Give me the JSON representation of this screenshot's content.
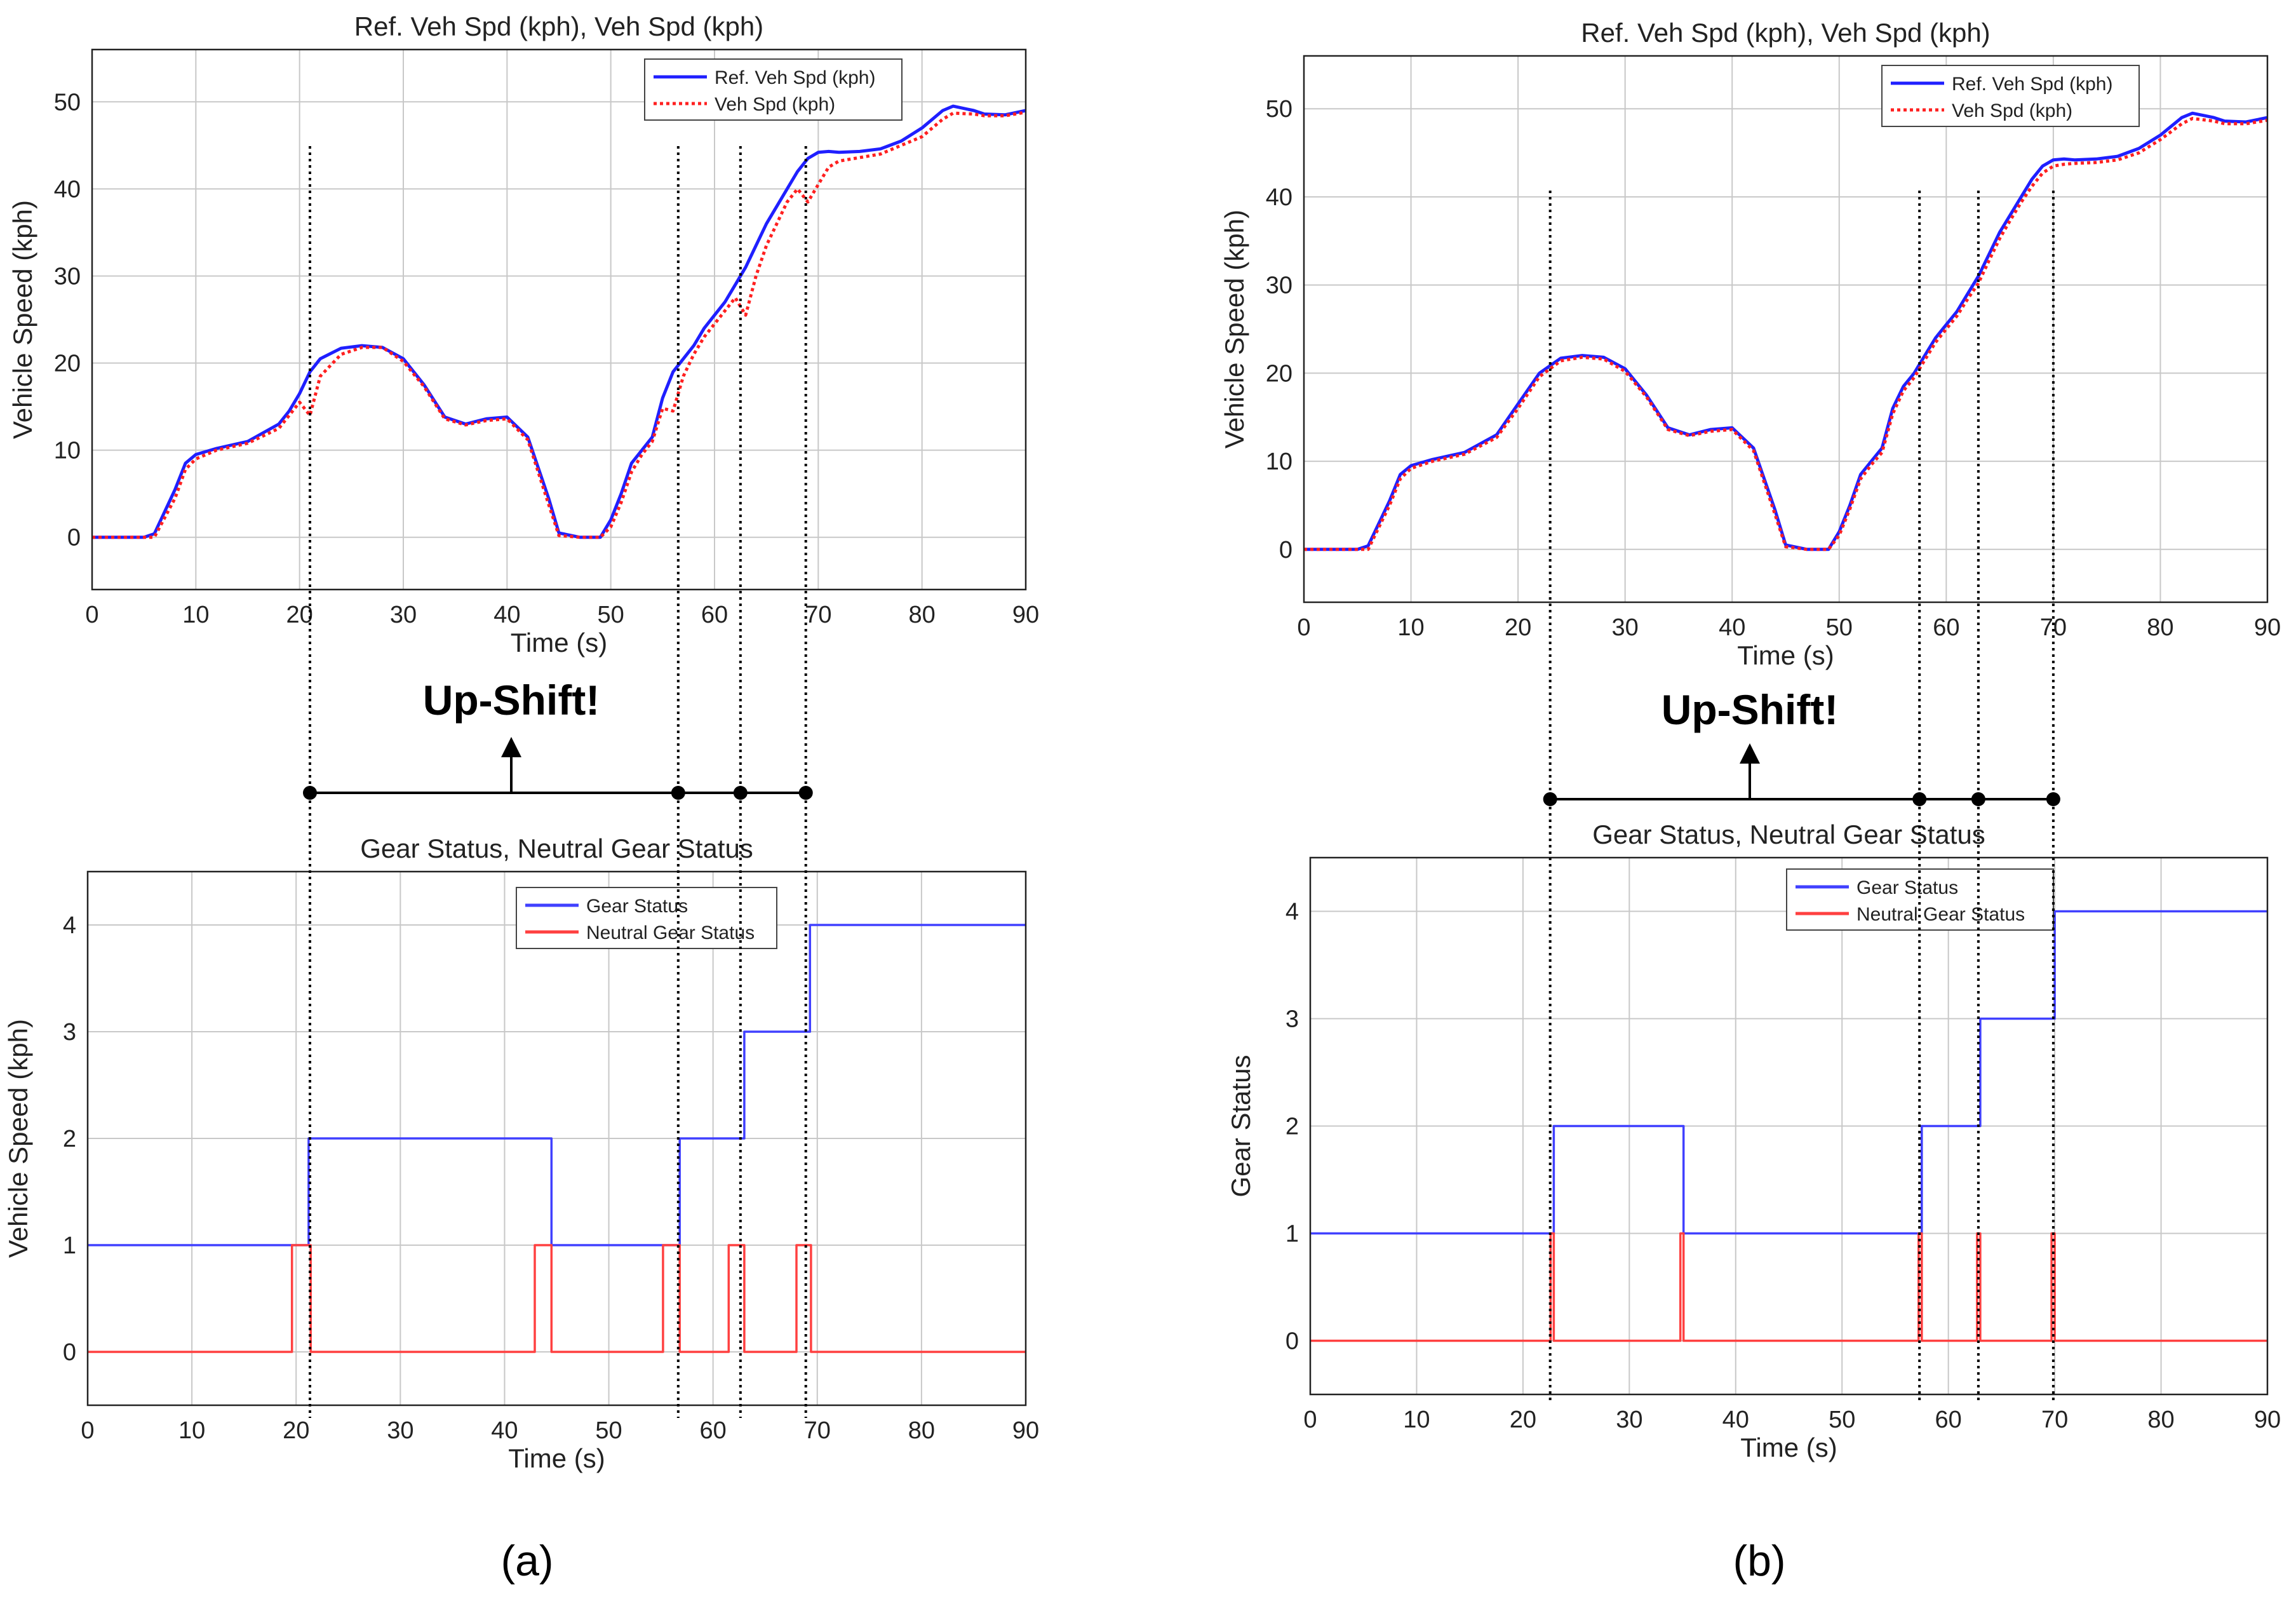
{
  "figure": {
    "annotation_text": "Up-Shift!",
    "panel_labels": [
      "(a)",
      "(b)"
    ],
    "colors": {
      "ref_speed": "#1f1fff",
      "veh_speed": "#ff2020",
      "gear": "#4040ff",
      "neutral": "#ff4040",
      "grid": "#c8c8c8",
      "axes": "#222222",
      "guide": "#000000"
    }
  },
  "chart_data": [
    {
      "id": "a-speed",
      "type": "line",
      "title": "Ref. Veh Spd (kph), Veh Spd (kph)",
      "xlabel": "Time (s)",
      "ylabel": "Vehicle Speed (kph)",
      "xlim": [
        0,
        90
      ],
      "ylim": [
        -6,
        56
      ],
      "xticks": [
        0,
        10,
        20,
        30,
        40,
        50,
        60,
        70,
        80,
        90
      ],
      "yticks": [
        0,
        10,
        20,
        30,
        40,
        50
      ],
      "grid": true,
      "legend": "top-right",
      "series": [
        {
          "name": "Ref. Veh Spd (kph)",
          "style": "solid",
          "color": "#1f1fff",
          "x": [
            0,
            5,
            6,
            8,
            9,
            10,
            12,
            15,
            18,
            19,
            20,
            21,
            22,
            24,
            26,
            28,
            30,
            32,
            34,
            36,
            38,
            40,
            42,
            44,
            45,
            47,
            48,
            49,
            50,
            51,
            52,
            53,
            54,
            55,
            56,
            57,
            58,
            59,
            60,
            61,
            62,
            63,
            64,
            65,
            66,
            67,
            68,
            69,
            70,
            71,
            72,
            74,
            76,
            78,
            80,
            82,
            83,
            85,
            86,
            88,
            90
          ],
          "y": [
            0,
            0,
            0.4,
            5.5,
            8.5,
            9.5,
            10.2,
            11,
            13,
            14.5,
            16.5,
            19,
            20.5,
            21.7,
            22,
            21.8,
            20.5,
            17.5,
            13.8,
            13,
            13.6,
            13.8,
            11.5,
            4.5,
            0.5,
            0,
            0,
            0,
            2,
            5,
            8.5,
            10,
            11.5,
            16,
            19,
            20.5,
            22,
            24,
            25.5,
            27,
            29,
            31,
            33.5,
            36,
            38,
            40,
            42,
            43.5,
            44.2,
            44.3,
            44.2,
            44.3,
            44.6,
            45.5,
            47,
            49,
            49.5,
            49,
            48.6,
            48.5,
            49
          ]
        },
        {
          "name": "Veh Spd (kph)",
          "style": "dotted",
          "color": "#ff2020",
          "x": [
            0,
            5,
            6,
            8,
            9,
            10,
            12,
            15,
            18,
            19,
            20,
            21,
            22,
            24,
            26,
            28,
            30,
            32,
            34,
            36,
            38,
            40,
            42,
            44,
            45,
            47,
            48,
            49,
            50,
            51,
            52,
            53,
            54,
            55,
            56,
            57,
            58,
            59,
            60,
            61,
            62,
            63,
            64,
            65,
            66,
            67,
            68,
            69,
            70,
            71,
            72,
            74,
            76,
            78,
            80,
            82,
            83,
            85,
            86,
            88,
            90
          ],
          "y": [
            0,
            0,
            0,
            4.5,
            7.8,
            9,
            10,
            10.8,
            12.5,
            14,
            15.5,
            14,
            18.5,
            21,
            21.8,
            21.8,
            20.2,
            17.3,
            13.6,
            12.9,
            13.4,
            13.6,
            11.2,
            3.8,
            0.2,
            0,
            0,
            0,
            1.2,
            4,
            7.5,
            9.5,
            11,
            14.8,
            14.5,
            18.5,
            21,
            23,
            24.5,
            26,
            27.5,
            25.5,
            30,
            33.5,
            36,
            38.5,
            40,
            38.5,
            40.5,
            42.5,
            43.2,
            43.6,
            44,
            45,
            46,
            48,
            48.7,
            48.6,
            48.4,
            48.4,
            48.8
          ]
        }
      ]
    },
    {
      "id": "a-gear",
      "type": "line",
      "title": "Gear Status, Neutral Gear Status",
      "xlabel": "Time (s)",
      "ylabel": "Vehicle Speed (kph)",
      "xlim": [
        0,
        90
      ],
      "ylim": [
        -0.5,
        4.5
      ],
      "xticks": [
        0,
        10,
        20,
        30,
        40,
        50,
        60,
        70,
        80,
        90
      ],
      "yticks": [
        0,
        1,
        2,
        3,
        4
      ],
      "grid": true,
      "legend": "top-center",
      "series": [
        {
          "name": "Gear Status",
          "step": true,
          "color": "#4040ff",
          "x": [
            0,
            21.2,
            44.5,
            56.8,
            63,
            69.3,
            90
          ],
          "y": [
            1,
            2,
            1,
            2,
            3,
            4,
            4
          ]
        },
        {
          "name": "Neutral Gear Status",
          "step": true,
          "color": "#ff4040",
          "x": [
            0,
            19.6,
            21.4,
            42.9,
            44.5,
            55.2,
            56.8,
            61.5,
            63,
            68.0,
            69.4,
            90
          ],
          "y": [
            0,
            1,
            0,
            1,
            0,
            1,
            0,
            1,
            0,
            1,
            0,
            0
          ]
        }
      ]
    },
    {
      "id": "b-speed",
      "type": "line",
      "title": "Ref. Veh Spd (kph), Veh Spd (kph)",
      "xlabel": "Time (s)",
      "ylabel": "Vehicle Speed (kph)",
      "xlim": [
        0,
        90
      ],
      "ylim": [
        -6,
        56
      ],
      "xticks": [
        0,
        10,
        20,
        30,
        40,
        50,
        60,
        70,
        80,
        90
      ],
      "yticks": [
        0,
        10,
        20,
        30,
        40,
        50
      ],
      "grid": true,
      "legend": "top-right",
      "series": [
        {
          "name": "Ref. Veh Spd (kph)",
          "style": "solid",
          "color": "#1f1fff",
          "x": [
            0,
            5,
            6,
            8,
            9,
            10,
            12,
            15,
            18,
            20,
            22,
            24,
            26,
            28,
            30,
            32,
            34,
            36,
            38,
            40,
            42,
            44,
            45,
            47,
            48,
            49,
            50,
            51,
            52,
            53,
            54,
            55,
            56,
            57,
            58,
            59,
            60,
            61,
            62,
            63,
            64,
            65,
            66,
            67,
            68,
            69,
            70,
            71,
            72,
            74,
            76,
            78,
            80,
            82,
            83,
            85,
            86,
            88,
            90
          ],
          "y": [
            0,
            0,
            0.4,
            5.5,
            8.5,
            9.5,
            10.2,
            11,
            13,
            16.5,
            20,
            21.7,
            22,
            21.8,
            20.5,
            17.5,
            13.8,
            13,
            13.6,
            13.8,
            11.5,
            4.5,
            0.5,
            0,
            0,
            0,
            2,
            5,
            8.5,
            10,
            11.5,
            16,
            18.5,
            20,
            22,
            24,
            25.5,
            27,
            29,
            31,
            33.5,
            36,
            38,
            40,
            42,
            43.5,
            44.2,
            44.3,
            44.2,
            44.3,
            44.6,
            45.5,
            47,
            49,
            49.5,
            49,
            48.6,
            48.5,
            49
          ]
        },
        {
          "name": "Veh Spd (kph)",
          "style": "dotted",
          "color": "#ff2020",
          "x": [
            0,
            5,
            6,
            8,
            9,
            10,
            12,
            15,
            18,
            20,
            22,
            24,
            26,
            28,
            30,
            32,
            34,
            36,
            38,
            40,
            42,
            44,
            45,
            47,
            48,
            49,
            50,
            51,
            52,
            53,
            54,
            55,
            56,
            57,
            58,
            59,
            60,
            61,
            62,
            63,
            64,
            65,
            66,
            67,
            68,
            69,
            70,
            71,
            72,
            74,
            76,
            78,
            80,
            82,
            83,
            85,
            86,
            88,
            90
          ],
          "y": [
            0,
            0,
            0,
            5,
            8,
            9.2,
            10,
            10.8,
            12.7,
            16,
            19.6,
            21.4,
            21.8,
            21.6,
            20.2,
            17.3,
            13.6,
            12.9,
            13.4,
            13.6,
            11.2,
            4,
            0.3,
            0,
            0,
            0,
            1.6,
            4.6,
            8,
            9.6,
            11,
            15.4,
            18,
            19.5,
            21.5,
            23.5,
            25,
            26.5,
            28.4,
            30.2,
            32.8,
            35.3,
            37.4,
            39.4,
            41.2,
            42.7,
            43.5,
            43.7,
            43.8,
            43.9,
            44.2,
            45,
            46.5,
            48.3,
            48.9,
            48.6,
            48.3,
            48.3,
            48.7
          ]
        }
      ]
    },
    {
      "id": "b-gear",
      "type": "line",
      "title": "Gear Status, Neutral Gear Status",
      "xlabel": "Time (s)",
      "ylabel": "Gear Status",
      "xlim": [
        0,
        90
      ],
      "ylim": [
        -0.5,
        4.5
      ],
      "xticks": [
        0,
        10,
        20,
        30,
        40,
        50,
        60,
        70,
        80,
        90
      ],
      "yticks": [
        0,
        1,
        2,
        3,
        4
      ],
      "grid": true,
      "legend": "top-center",
      "series": [
        {
          "name": "Gear Status",
          "step": true,
          "color": "#4040ff",
          "x": [
            0,
            22.9,
            35.1,
            57.5,
            63.0,
            70.0,
            90
          ],
          "y": [
            1,
            2,
            1,
            2,
            3,
            4,
            4
          ]
        },
        {
          "name": "Neutral Gear Status",
          "step": true,
          "color": "#ff4040",
          "x": [
            0,
            22.6,
            22.9,
            34.8,
            35.1,
            57.2,
            57.5,
            62.7,
            63.0,
            69.7,
            70.0,
            90
          ],
          "y": [
            0,
            1,
            0,
            1,
            0,
            1,
            0,
            1,
            0,
            1,
            0,
            0
          ]
        }
      ]
    }
  ],
  "shift_markers": {
    "a": [
      21,
      56.5,
      62.5,
      68.8
    ],
    "b": [
      23,
      57.5,
      63,
      70
    ]
  }
}
